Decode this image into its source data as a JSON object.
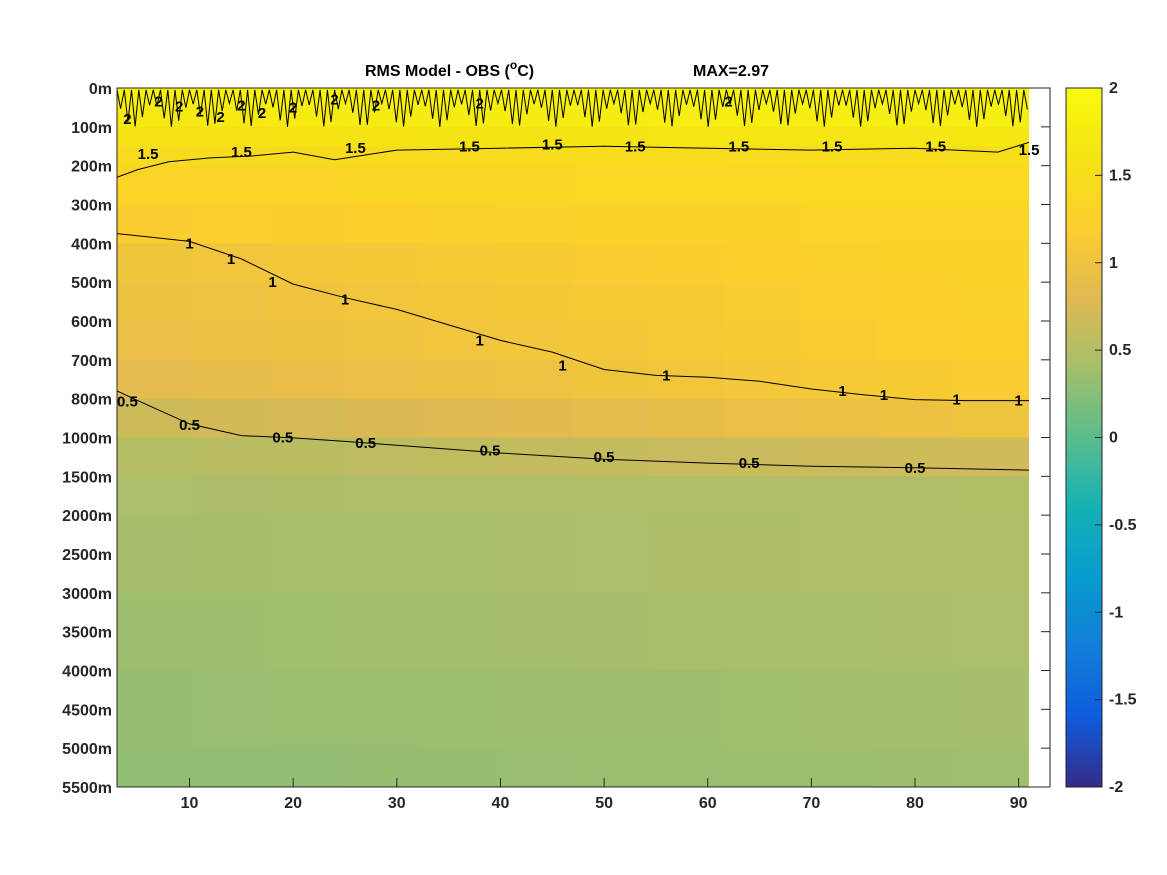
{
  "chart_data": {
    "type": "heatmap",
    "title": "RMS Model - OBS (",
    "title_superscript": "o",
    "title_unit": "C)",
    "title_max": "MAX=2.97",
    "x": {
      "range": [
        3,
        91
      ],
      "ticks": [
        10,
        20,
        30,
        40,
        50,
        60,
        70,
        80,
        90
      ],
      "tick_labels": [
        "10",
        "20",
        "30",
        "40",
        "50",
        "60",
        "70",
        "80",
        "90"
      ]
    },
    "y": {
      "scale": "stretched-depth",
      "direction": "down",
      "ticks": [
        0,
        100,
        200,
        300,
        400,
        500,
        600,
        700,
        800,
        1000,
        1500,
        2000,
        2500,
        3000,
        3500,
        4000,
        4500,
        5000,
        5500
      ],
      "tick_labels": [
        "0m",
        "100m",
        "200m",
        "300m",
        "400m",
        "500m",
        "600m",
        "700m",
        "800m",
        "1000m",
        "1500m",
        "2000m",
        "2500m",
        "3000m",
        "3500m",
        "4000m",
        "4500m",
        "5000m",
        "5500m"
      ]
    },
    "colorbar": {
      "range": [
        -2,
        2
      ],
      "colormap": "parula",
      "ticks": [
        2,
        1.5,
        1,
        0.5,
        0,
        -0.5,
        -1,
        -1.5,
        -2
      ],
      "tick_labels": [
        "2",
        "1.5",
        "1",
        "0.5",
        "0",
        "-0.5",
        "-1",
        "-1.5",
        "-2"
      ]
    },
    "field_profile": {
      "depth": [
        0,
        50,
        100,
        150,
        200,
        300,
        400,
        500,
        600,
        700,
        800,
        1000,
        1500,
        2000,
        3000,
        4000,
        5000,
        5500
      ],
      "value_x_low": [
        1.85,
        1.75,
        1.65,
        1.5,
        1.35,
        1.3,
        1.05,
        0.98,
        0.92,
        0.9,
        0.75,
        0.55,
        0.45,
        0.42,
        0.38,
        0.34,
        0.3,
        0.28
      ],
      "value_x_high": [
        1.92,
        1.85,
        1.75,
        1.58,
        1.42,
        1.38,
        1.3,
        1.28,
        1.25,
        1.22,
        1.15,
        0.9,
        0.5,
        0.48,
        0.46,
        0.42,
        0.38,
        0.36
      ]
    },
    "contours": [
      {
        "level": "2",
        "x": [
          3,
          91
        ],
        "depth": [
          60,
          60
        ],
        "label_positions": [
          [
            4,
            80
          ],
          [
            7,
            35
          ],
          [
            9,
            48
          ],
          [
            11,
            60
          ],
          [
            13,
            75
          ],
          [
            15,
            45
          ],
          [
            17,
            65
          ],
          [
            20,
            50
          ],
          [
            24,
            30
          ],
          [
            28,
            45
          ],
          [
            38,
            40
          ],
          [
            62,
            35
          ]
        ]
      },
      {
        "level": "1.5",
        "x": [
          3,
          5,
          8,
          12,
          16,
          20,
          24,
          30,
          40,
          50,
          60,
          70,
          80,
          88,
          91
        ],
        "depth": [
          230,
          210,
          190,
          180,
          175,
          165,
          185,
          160,
          155,
          150,
          155,
          160,
          155,
          165,
          140
        ],
        "label_positions": [
          [
            6,
            170
          ],
          [
            15,
            165
          ],
          [
            26,
            155
          ],
          [
            37,
            150
          ],
          [
            45,
            145
          ],
          [
            53,
            150
          ],
          [
            63,
            150
          ],
          [
            72,
            150
          ],
          [
            82,
            150
          ],
          [
            91,
            160
          ]
        ]
      },
      {
        "level": "1",
        "x": [
          3,
          10,
          15,
          20,
          25,
          30,
          35,
          40,
          45,
          50,
          55,
          60,
          65,
          70,
          75,
          80,
          85,
          91
        ],
        "depth": [
          375,
          395,
          440,
          505,
          540,
          570,
          610,
          650,
          680,
          725,
          740,
          745,
          755,
          775,
          790,
          805,
          810,
          810
        ],
        "label_positions": [
          [
            10,
            400
          ],
          [
            14,
            440
          ],
          [
            18,
            500
          ],
          [
            25,
            545
          ],
          [
            38,
            650
          ],
          [
            46,
            715
          ],
          [
            56,
            740
          ],
          [
            73,
            780
          ],
          [
            77,
            790
          ],
          [
            84,
            805
          ],
          [
            90,
            810
          ]
        ]
      },
      {
        "level": "0.5",
        "x": [
          3,
          5,
          10,
          15,
          20,
          25,
          30,
          40,
          50,
          60,
          70,
          80,
          91
        ],
        "depth": [
          780,
          810,
          930,
          990,
          1005,
          1050,
          1100,
          1200,
          1280,
          1330,
          1370,
          1390,
          1420
        ],
        "label_positions": [
          [
            4,
            815
          ],
          [
            10,
            935
          ],
          [
            19,
            1000
          ],
          [
            27,
            1070
          ],
          [
            39,
            1170
          ],
          [
            50,
            1250
          ],
          [
            64,
            1330
          ],
          [
            80,
            1390
          ]
        ]
      }
    ]
  }
}
